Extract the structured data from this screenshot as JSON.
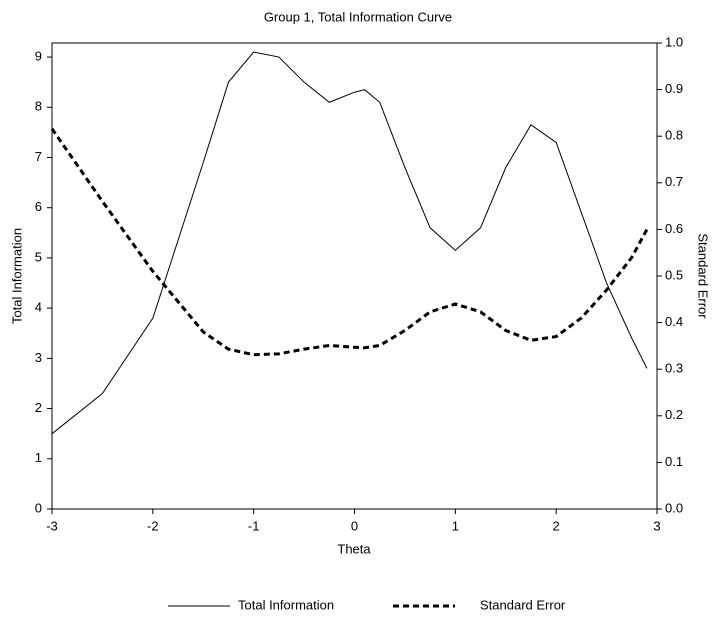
{
  "chart_data": {
    "type": "line",
    "title": "Group 1, Total Information Curve",
    "x_label": "Theta",
    "y_label": "Total Information",
    "y2_label": "Standard Error",
    "xlim": [
      -3,
      3
    ],
    "xticks": [
      -3,
      -2,
      -1,
      0,
      1,
      2,
      3
    ],
    "ylim": [
      0,
      9.28
    ],
    "yticks": [
      0,
      1,
      2,
      3,
      4,
      5,
      6,
      7,
      8,
      9
    ],
    "y2lim": [
      0,
      1
    ],
    "y2ticks": [
      {
        "value": 0,
        "label": "0.0"
      },
      0.1,
      0.2,
      0.3,
      0.4,
      0.5,
      0.6,
      0.7,
      0.8,
      0.9,
      {
        "value": 1,
        "label": "1.0"
      }
    ],
    "legend": "bottom",
    "x": [
      -3,
      -2.5,
      -2,
      -1.5,
      -1.25,
      -1,
      -0.75,
      -0.5,
      -0.25,
      0,
      0.1,
      0.25,
      0.5,
      0.75,
      1,
      1.25,
      1.5,
      1.75,
      2,
      2.25,
      2.5,
      2.75,
      2.9
    ],
    "series": [
      {
        "name": "Total Information",
        "color": "#000000",
        "dash": "solid",
        "axis": "y",
        "values": [
          1.5,
          2.3,
          3.8,
          6.9,
          8.5,
          9.1,
          9.0,
          8.5,
          8.1,
          8.3,
          8.35,
          8.1,
          6.8,
          5.6,
          5.15,
          5.6,
          6.8,
          7.65,
          7.3,
          5.9,
          4.5,
          3.4,
          2.8
        ]
      },
      {
        "name": "Standard Error",
        "color": "#000000",
        "dash": "dashed",
        "axis": "y2",
        "values": [
          0.816,
          0.66,
          0.51,
          0.38,
          0.343,
          0.331,
          0.333,
          0.343,
          0.351,
          0.347,
          0.346,
          0.351,
          0.383,
          0.423,
          0.44,
          0.423,
          0.383,
          0.362,
          0.37,
          0.41,
          0.47,
          0.54,
          0.6
        ]
      }
    ]
  }
}
